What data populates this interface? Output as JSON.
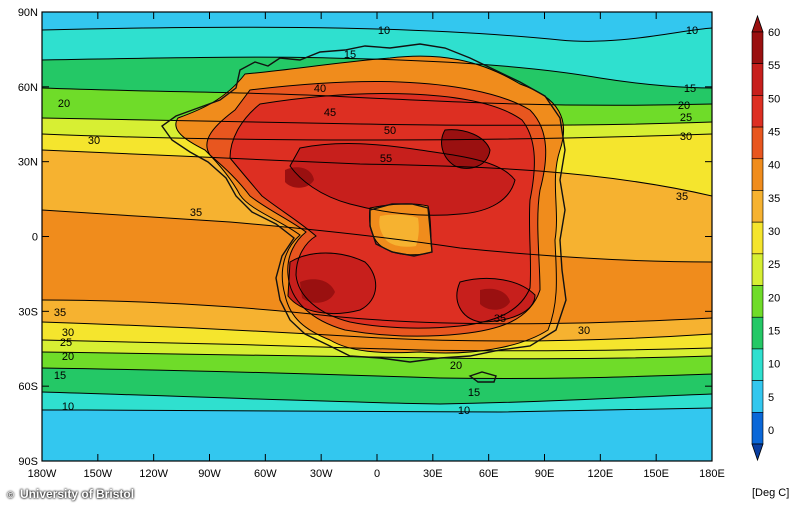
{
  "map": {
    "colorbar_ticks": [
      "0",
      "5",
      "10",
      "15",
      "20",
      "25",
      "30",
      "35",
      "40",
      "45",
      "50",
      "55",
      "60"
    ],
    "colorbar_colors": [
      "#0a67d8",
      "#33c7ef",
      "#2fe0cf",
      "#24c866",
      "#6fdc29",
      "#d7ef33",
      "#f5e52d",
      "#f6b230",
      "#f08c1c",
      "#e8561f",
      "#dd2f22",
      "#c71f1c",
      "#9a1010"
    ],
    "unit_label": "[Deg C]",
    "lat_labels": [
      "90N",
      "60N",
      "30N",
      "0",
      "30S",
      "60S",
      "90S"
    ],
    "lon_labels": [
      "180W",
      "150W",
      "120W",
      "90W",
      "60W",
      "30W",
      "0",
      "30E",
      "60E",
      "90E",
      "120E",
      "150E",
      "180E"
    ],
    "contour_labels": [
      "10",
      "10",
      "15",
      "15",
      "20",
      "20",
      "25",
      "30",
      "30",
      "35",
      "35",
      "40",
      "45",
      "50",
      "55",
      "35",
      "30",
      "25",
      "20",
      "15",
      "10",
      "30",
      "35",
      "20",
      "15",
      "10"
    ],
    "credit": "University of Bristol"
  }
}
